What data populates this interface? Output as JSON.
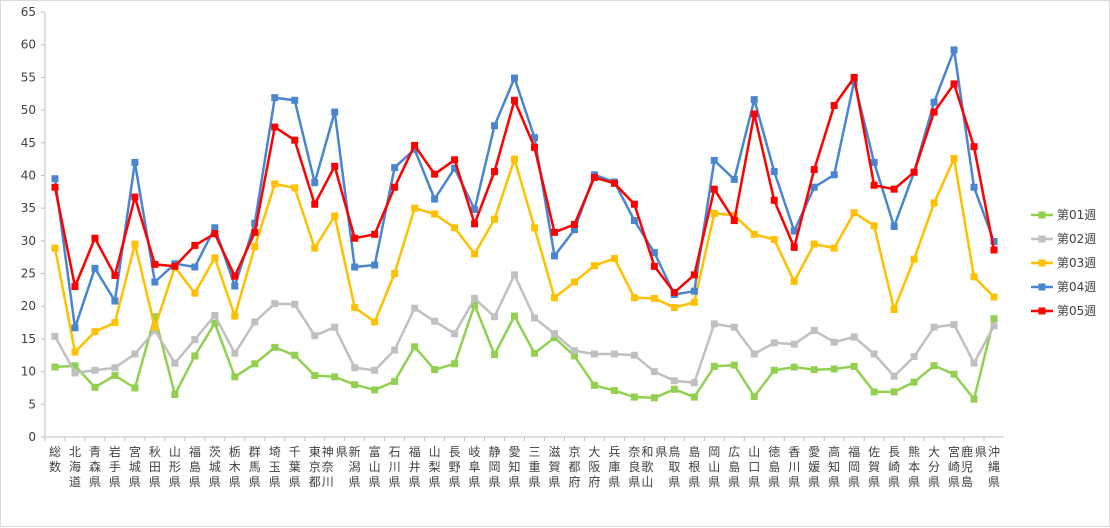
{
  "chart_data": {
    "type": "line",
    "title": "",
    "xlabel": "",
    "ylabel": "",
    "ylim": [
      0,
      65
    ],
    "yticks": [
      0,
      5,
      10,
      15,
      20,
      25,
      30,
      35,
      40,
      45,
      50,
      55,
      60,
      65
    ],
    "grid": false,
    "legend_position": "right",
    "categories": [
      "総数",
      "北海道",
      "青森県",
      "岩手県",
      "宮城県",
      "秋田県",
      "山形県",
      "福島県",
      "茨城県",
      "栃木県",
      "群馬県",
      "埼玉県",
      "千葉県",
      "東京都",
      "神奈川県",
      "新潟県",
      "富山県",
      "石川県",
      "福井県",
      "山梨県",
      "長野県",
      "岐阜県",
      "静岡県",
      "愛知県",
      "三重県",
      "滋賀県",
      "京都府",
      "大阪府",
      "兵庫県",
      "奈良県",
      "和歌山県",
      "鳥取県",
      "島根県",
      "岡山県",
      "広島県",
      "山口県",
      "徳島県",
      "香川県",
      "愛媛県",
      "高知県",
      "福岡県",
      "佐賀県",
      "長崎県",
      "熊本県",
      "大分県",
      "宮崎県",
      "鹿児島県",
      "沖縄県"
    ],
    "series": [
      {
        "name": "第01週",
        "color": "#92d050",
        "marker": "square",
        "values": [
          10.7,
          10.9,
          7.6,
          9.4,
          7.5,
          18.4,
          6.5,
          12.4,
          17.4,
          9.2,
          11.2,
          13.7,
          12.5,
          9.4,
          9.2,
          8.0,
          7.2,
          8.5,
          13.8,
          10.3,
          11.2,
          20.2,
          12.6,
          18.5,
          12.8,
          15.2,
          12.4,
          7.9,
          7.1,
          6.1,
          6.0,
          7.3,
          6.1,
          10.8,
          11.0,
          6.2,
          10.2,
          10.7,
          10.3,
          10.4,
          10.8,
          6.9,
          6.9,
          8.4,
          10.9,
          9.6,
          5.8,
          18.1
        ]
      },
      {
        "name": "第02週",
        "color": "#c0c0c0",
        "marker": "square",
        "values": [
          15.4,
          9.8,
          10.2,
          10.6,
          12.7,
          16.3,
          11.3,
          14.9,
          18.6,
          12.8,
          17.6,
          20.4,
          20.3,
          15.5,
          16.8,
          10.6,
          10.2,
          13.3,
          19.7,
          17.7,
          15.8,
          21.2,
          18.4,
          24.8,
          18.2,
          15.8,
          13.2,
          12.7,
          12.7,
          12.5,
          10.0,
          8.6,
          8.3,
          17.3,
          16.8,
          12.7,
          14.4,
          14.2,
          16.3,
          14.5,
          15.3,
          12.7,
          9.3,
          12.3,
          16.8,
          17.2,
          11.3,
          17.0
        ]
      },
      {
        "name": "第03週",
        "color": "#ffc000",
        "marker": "square",
        "values": [
          28.9,
          13.0,
          16.1,
          17.5,
          29.5,
          16.8,
          26.0,
          22.0,
          27.4,
          18.5,
          29.1,
          38.7,
          38.1,
          28.9,
          33.8,
          19.8,
          17.6,
          25.0,
          35.0,
          34.1,
          32.0,
          28.0,
          33.3,
          42.5,
          32.0,
          21.3,
          23.7,
          26.2,
          27.3,
          21.3,
          21.2,
          19.8,
          20.6,
          34.2,
          33.9,
          31.0,
          30.2,
          23.8,
          29.5,
          28.9,
          34.3,
          32.3,
          19.5,
          27.2,
          35.8,
          42.6,
          24.5,
          21.4
        ]
      },
      {
        "name": "第04週",
        "color": "#4a86cf",
        "marker": "square",
        "values": [
          39.5,
          16.7,
          25.8,
          20.8,
          42.0,
          23.7,
          26.5,
          26.0,
          32.0,
          23.1,
          32.7,
          51.9,
          51.5,
          38.9,
          49.7,
          26.0,
          26.3,
          41.2,
          44.0,
          36.4,
          41.1,
          34.8,
          47.6,
          54.9,
          45.8,
          27.7,
          31.7,
          40.1,
          39.0,
          33.1,
          28.2,
          21.8,
          22.3,
          42.3,
          39.4,
          51.6,
          40.6,
          31.5,
          38.2,
          40.1,
          54.4,
          42.0,
          32.2,
          40.5,
          51.2,
          59.2,
          38.2,
          29.9
        ]
      },
      {
        "name": "第05週",
        "color": "#ff0000",
        "marker": "square",
        "values": [
          38.2,
          23.0,
          30.4,
          24.7,
          36.7,
          26.4,
          26.1,
          29.3,
          31.1,
          24.6,
          31.3,
          47.4,
          45.4,
          35.6,
          41.4,
          30.4,
          31.0,
          38.2,
          44.6,
          40.2,
          42.4,
          32.6,
          40.6,
          51.5,
          44.3,
          31.3,
          32.5,
          39.7,
          38.8,
          35.6,
          26.1,
          22.1,
          24.8,
          37.9,
          33.1,
          49.4,
          36.2,
          29.0,
          40.9,
          50.7,
          55.0,
          38.5,
          37.9,
          40.5,
          49.7,
          54.0,
          44.4,
          28.6
        ]
      }
    ]
  }
}
